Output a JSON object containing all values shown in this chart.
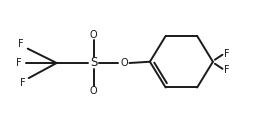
{
  "bg_color": "#ffffff",
  "line_color": "#1a1a1a",
  "line_width": 1.4,
  "font_size": 7.0,
  "font_color": "#1a1a1a",
  "figsize": [
    2.62,
    1.26
  ],
  "dpi": 100,
  "xlim": [
    0,
    10
  ],
  "ylim": [
    0,
    5
  ]
}
